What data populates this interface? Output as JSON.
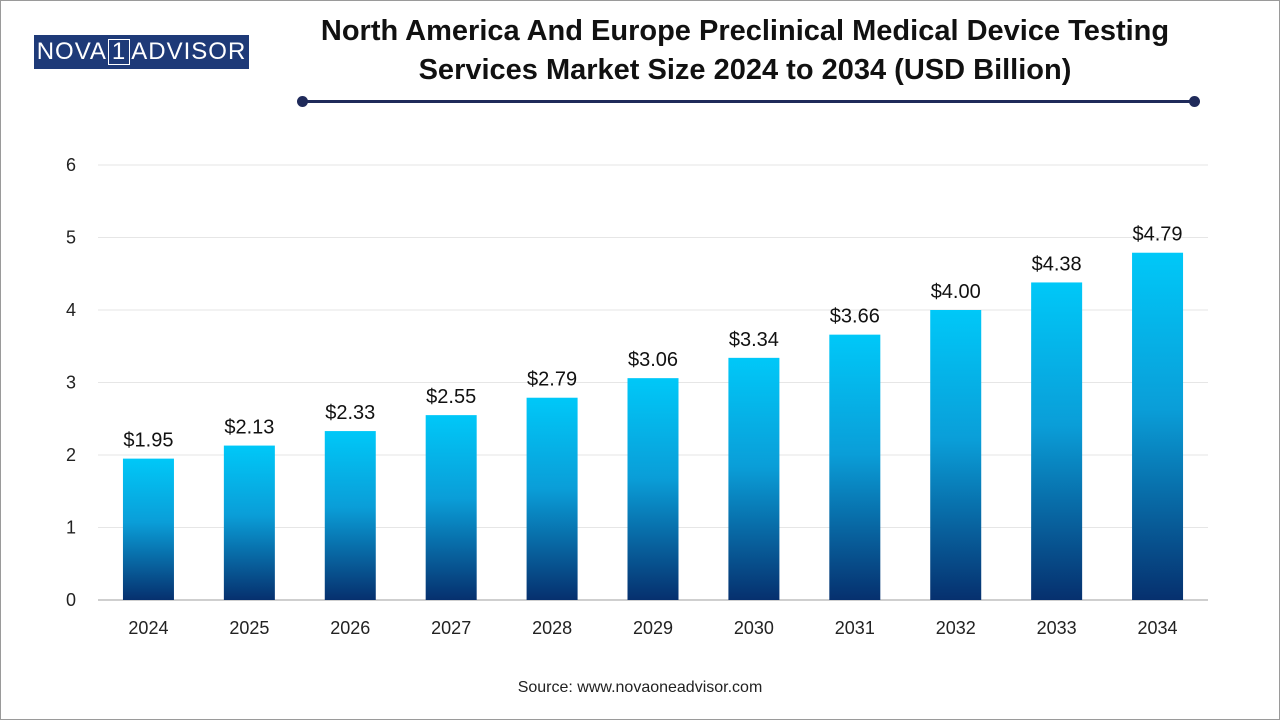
{
  "logo": {
    "prefix": "NOVA",
    "one": "1",
    "suffix": "ADVISOR"
  },
  "source": "Source: www.novaoneadvisor.com",
  "colors": {
    "bar_top": "#00c8f8",
    "bar_bottom": "#06306e",
    "rule": "#1f2a5a"
  },
  "chart_data": {
    "type": "bar",
    "title": "North America And Europe Preclinical Medical Device Testing Services Market Size 2024 to 2034 (USD Billion)",
    "xlabel": "",
    "ylabel": "",
    "categories": [
      "2024",
      "2025",
      "2026",
      "2027",
      "2028",
      "2029",
      "2030",
      "2031",
      "2032",
      "2033",
      "2034"
    ],
    "values": [
      1.95,
      2.13,
      2.33,
      2.55,
      2.79,
      3.06,
      3.34,
      3.66,
      4.0,
      4.38,
      4.79
    ],
    "labels": [
      "$1.95",
      "$2.13",
      "$2.33",
      "$2.55",
      "$2.79",
      "$3.06",
      "$3.34",
      "$3.66",
      "$4.00",
      "$4.38",
      "$4.79"
    ],
    "ylim": [
      0,
      6
    ],
    "yticks": [
      "0",
      "1",
      "2",
      "3",
      "4",
      "5",
      "6"
    ],
    "grid": true
  }
}
